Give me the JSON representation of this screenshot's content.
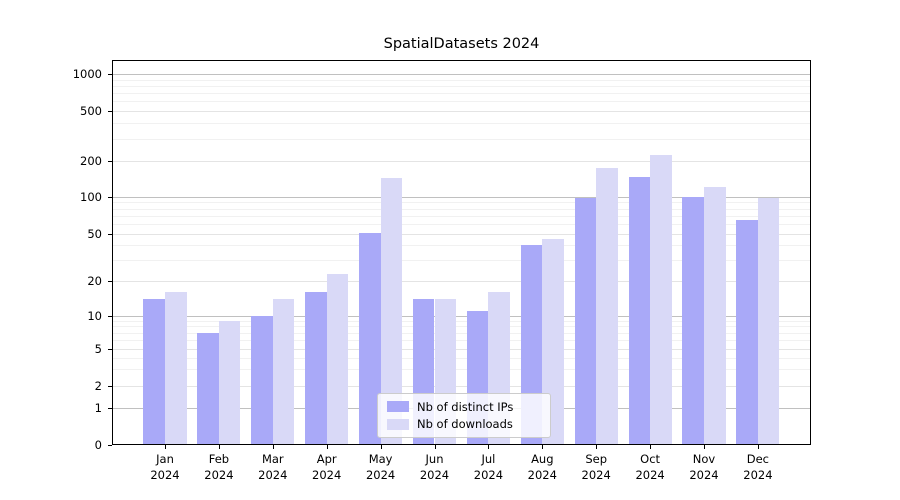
{
  "title": "SpatialDatasets 2024",
  "chart_data": {
    "type": "bar",
    "title": "SpatialDatasets 2024",
    "months": [
      "Jan",
      "Feb",
      "Mar",
      "Apr",
      "May",
      "Jun",
      "Jul",
      "Aug",
      "Sep",
      "Oct",
      "Nov",
      "Dec"
    ],
    "year": "2024",
    "series": [
      {
        "name": "Nb of distinct IPs",
        "color": "#a9a9f8",
        "values": [
          14,
          7,
          10,
          16,
          51,
          14,
          11,
          40,
          98,
          148,
          100,
          65
        ]
      },
      {
        "name": "Nb of downloads",
        "color": "#d9d9f7",
        "values": [
          16,
          9,
          14,
          23,
          145,
          14,
          16,
          45,
          175,
          225,
          120,
          97
        ]
      }
    ],
    "yscale": "symlog",
    "yticks": [
      0,
      1,
      2,
      5,
      10,
      20,
      50,
      100,
      200,
      500,
      1000
    ],
    "ylim": [
      0,
      1300
    ],
    "grid": true,
    "legend_position": "lower center",
    "xlabel": "",
    "ylabel": ""
  },
  "colors": {
    "bar_dark": "#a9a9f8",
    "bar_light": "#d9d9f7",
    "grid_decade": "#c0c0c0",
    "grid_labeled": "#e4e4e4",
    "grid_minor": "#f1f1f1",
    "spine": "#000000",
    "legend_border": "#cccccc"
  }
}
